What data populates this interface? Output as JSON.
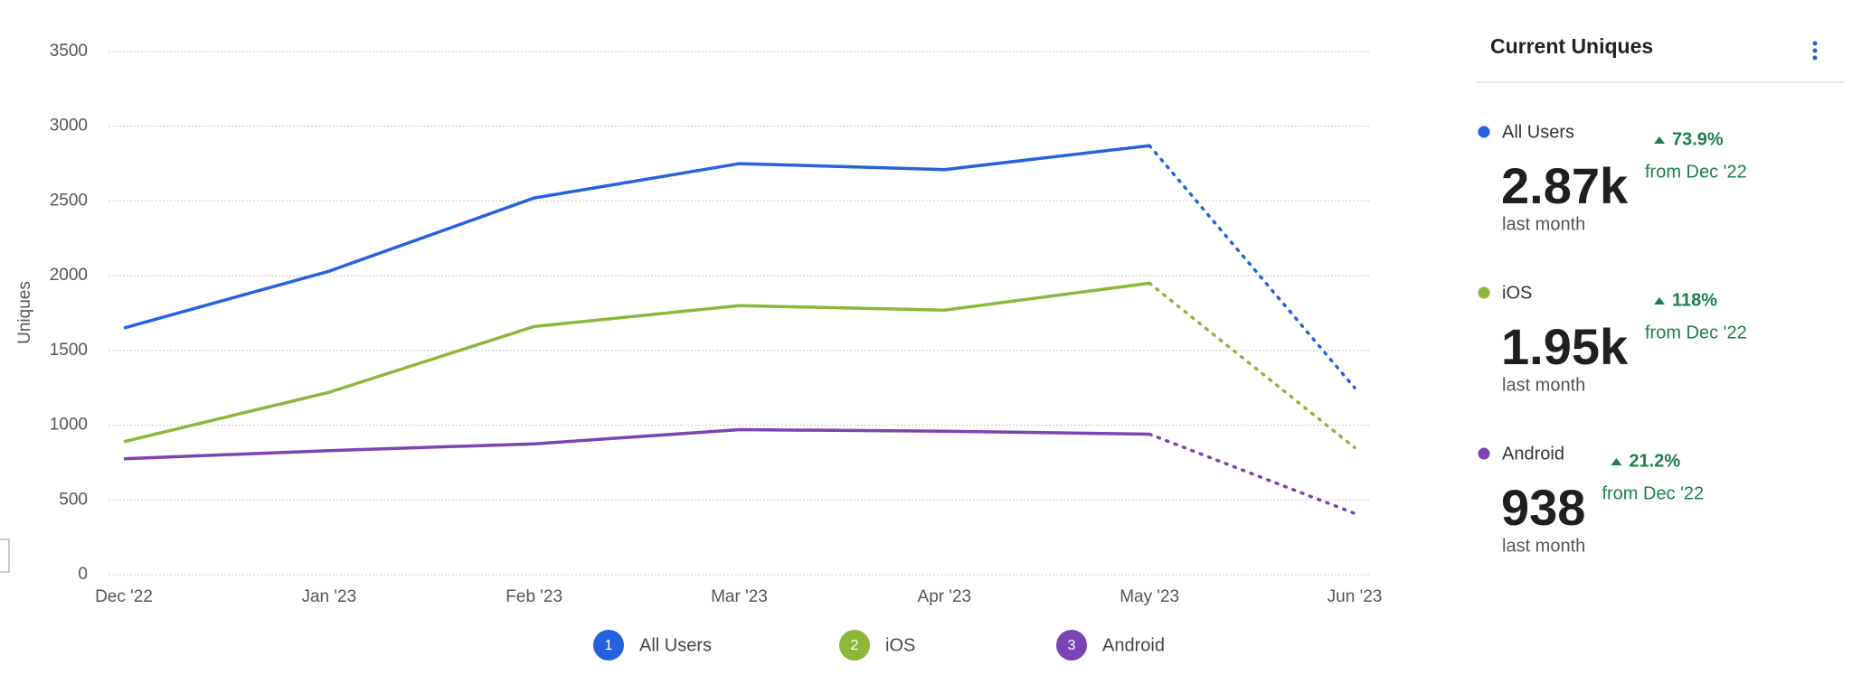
{
  "chart_data": {
    "type": "line",
    "y_label": "Uniques",
    "categories": [
      "Dec '22",
      "Jan '23",
      "Feb '23",
      "Mar '23",
      "Apr '23",
      "May '23",
      "Jun '23"
    ],
    "series": [
      {
        "name": "All Users",
        "badge": "1",
        "color": "#2462de",
        "values": [
          1650,
          2030,
          2520,
          2750,
          2710,
          2870,
          1250
        ]
      },
      {
        "name": "iOS",
        "badge": "2",
        "color": "#8db63a",
        "values": [
          890,
          1220,
          1660,
          1800,
          1770,
          1950,
          850
        ]
      },
      {
        "name": "Android",
        "badge": "3",
        "color": "#7a44b3",
        "values": [
          775,
          830,
          875,
          970,
          960,
          940,
          410
        ]
      }
    ],
    "ylim": [
      0,
      3500
    ],
    "yticks": [
      0,
      500,
      1000,
      1500,
      2000,
      2500,
      3000,
      3500
    ],
    "grid": true
  },
  "panel": {
    "title": "Current Uniques",
    "items": [
      {
        "name": "All Users",
        "color": "#2462de",
        "value": "2.87k",
        "period": "last month",
        "change": "73.9%",
        "since": "from Dec '22"
      },
      {
        "name": "iOS",
        "color": "#8db63a",
        "value": "1.95k",
        "period": "last month",
        "change": "118%",
        "since": "from Dec '22"
      },
      {
        "name": "Android",
        "color": "#7a44b3",
        "value": "938",
        "period": "last month",
        "change": "21.2%",
        "since": "from Dec '22"
      }
    ]
  }
}
